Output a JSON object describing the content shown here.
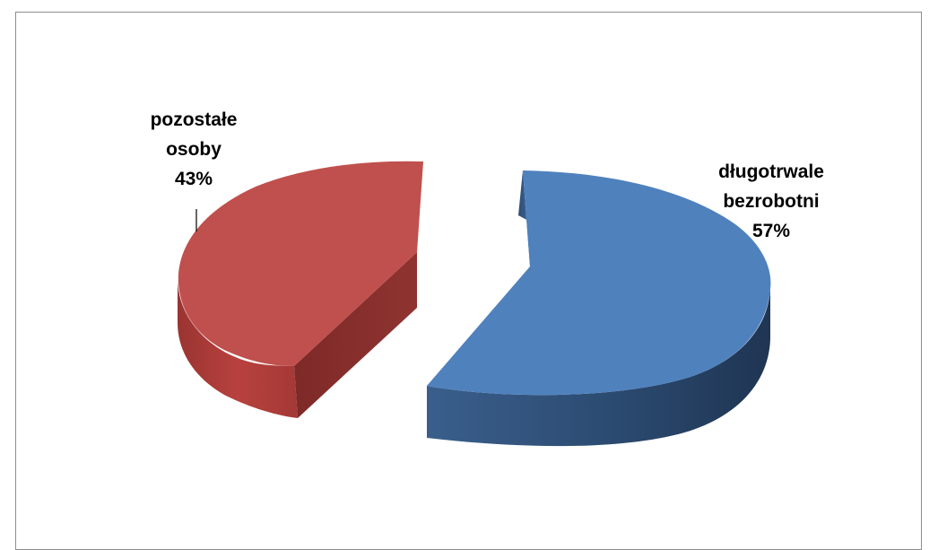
{
  "chart_data": {
    "type": "pie",
    "style": "3d-exploded",
    "slices": [
      {
        "label_lines": [
          "długotrwale",
          "bezrobotni"
        ],
        "percent_label": "57%",
        "value": 57,
        "color": "#4f81bd"
      },
      {
        "label_lines": [
          "pozostałe",
          "osoby"
        ],
        "percent_label": "43%",
        "value": 43,
        "color": "#c0504d"
      }
    ],
    "legend": "none"
  }
}
